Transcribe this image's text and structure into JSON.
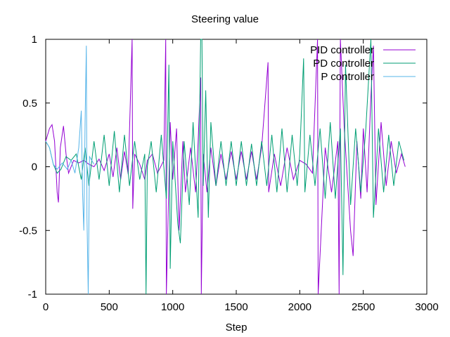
{
  "chart_data": {
    "type": "line",
    "title": "Steering value",
    "xlabel": "Step",
    "ylabel": "",
    "xlim": [
      0,
      3000
    ],
    "ylim": [
      -1,
      1
    ],
    "x_ticks": [
      0,
      500,
      1000,
      1500,
      2000,
      2500,
      3000
    ],
    "y_ticks": [
      -1,
      -0.5,
      0,
      0.5,
      1
    ],
    "x_tick_labels": [
      "0",
      "500",
      "1000",
      "1500",
      "2000",
      "2500",
      "3000"
    ],
    "y_tick_labels": [
      "-1",
      "-0.5",
      "0",
      "0.5",
      "1"
    ],
    "grid": false,
    "legend_position": "top-right",
    "series": [
      {
        "name": "PID controller",
        "color": "#9400d3",
        "points": [
          [
            0,
            0.2
          ],
          [
            30,
            0.3
          ],
          [
            50,
            0.33
          ],
          [
            70,
            0.2
          ],
          [
            90,
            -0.2
          ],
          [
            100,
            -0.28
          ],
          [
            115,
            0.15
          ],
          [
            140,
            0.32
          ],
          [
            160,
            0.1
          ],
          [
            180,
            -0.05
          ],
          [
            220,
            0.05
          ],
          [
            260,
            0.03
          ],
          [
            300,
            0.05
          ],
          [
            340,
            0.02
          ],
          [
            380,
            0.0
          ],
          [
            420,
            0.06
          ],
          [
            460,
            -0.03
          ],
          [
            500,
            0.1
          ],
          [
            530,
            -0.08
          ],
          [
            560,
            0.15
          ],
          [
            590,
            -0.1
          ],
          [
            620,
            0.12
          ],
          [
            650,
            -0.06
          ],
          [
            680,
            1.0
          ],
          [
            685,
            -0.33
          ],
          [
            700,
            0.1
          ],
          [
            740,
            0.02
          ],
          [
            780,
            -0.1
          ],
          [
            800,
            0.05
          ],
          [
            840,
            0.1
          ],
          [
            880,
            -0.05
          ],
          [
            930,
            0.05
          ],
          [
            945,
            1.0
          ],
          [
            950,
            -1.0
          ],
          [
            980,
            0.35
          ],
          [
            1000,
            -0.1
          ],
          [
            1030,
            0.3
          ],
          [
            1050,
            -0.5
          ],
          [
            1080,
            0.2
          ],
          [
            1100,
            -0.2
          ],
          [
            1140,
            0.15
          ],
          [
            1180,
            -0.2
          ],
          [
            1200,
            0.2
          ],
          [
            1220,
            0.7
          ],
          [
            1225,
            -1.0
          ],
          [
            1240,
            0.1
          ],
          [
            1270,
            -0.2
          ],
          [
            1300,
            0.15
          ],
          [
            1340,
            -0.15
          ],
          [
            1380,
            0.1
          ],
          [
            1420,
            -0.1
          ],
          [
            1460,
            0.12
          ],
          [
            1500,
            -0.1
          ],
          [
            1540,
            0.12
          ],
          [
            1580,
            -0.1
          ],
          [
            1620,
            0.12
          ],
          [
            1660,
            -0.1
          ],
          [
            1700,
            0.15
          ],
          [
            1750,
            0.82
          ],
          [
            1755,
            -0.2
          ],
          [
            1800,
            0.1
          ],
          [
            1850,
            -0.15
          ],
          [
            1900,
            0.15
          ],
          [
            1950,
            -0.1
          ],
          [
            2000,
            0.05
          ],
          [
            2050,
            0.02
          ],
          [
            2100,
            -0.05
          ],
          [
            2140,
            1.0
          ],
          [
            2145,
            -1.0
          ],
          [
            2200,
            0.15
          ],
          [
            2250,
            -0.2
          ],
          [
            2300,
            0.2
          ],
          [
            2310,
            -1.0
          ],
          [
            2320,
            1.0
          ],
          [
            2350,
            0.3
          ],
          [
            2400,
            -0.5
          ],
          [
            2420,
            -0.7
          ],
          [
            2450,
            0.2
          ],
          [
            2480,
            -0.25
          ],
          [
            2500,
            0.3
          ],
          [
            2530,
            -0.2
          ],
          [
            2560,
            0.55
          ],
          [
            2580,
            0.95
          ],
          [
            2600,
            -0.3
          ],
          [
            2640,
            0.35
          ],
          [
            2680,
            -0.15
          ],
          [
            2720,
            0.2
          ],
          [
            2760,
            -0.05
          ],
          [
            2800,
            0.1
          ],
          [
            2830,
            0.0
          ]
        ]
      },
      {
        "name": "PD controller",
        "color": "#009e73",
        "points": [
          [
            0,
            0.2
          ],
          [
            30,
            0.15
          ],
          [
            60,
            0.02
          ],
          [
            90,
            -0.05
          ],
          [
            120,
            -0.02
          ],
          [
            160,
            0.08
          ],
          [
            200,
            0.05
          ],
          [
            240,
            0.1
          ],
          [
            280,
            -0.1
          ],
          [
            310,
            0.15
          ],
          [
            340,
            -0.15
          ],
          [
            380,
            0.2
          ],
          [
            420,
            -0.1
          ],
          [
            460,
            0.25
          ],
          [
            500,
            -0.15
          ],
          [
            540,
            0.28
          ],
          [
            580,
            -0.2
          ],
          [
            620,
            0.25
          ],
          [
            660,
            -0.15
          ],
          [
            700,
            0.2
          ],
          [
            740,
            -0.1
          ],
          [
            780,
            0.1
          ],
          [
            790,
            -1.0
          ],
          [
            800,
            0.0
          ],
          [
            830,
            0.2
          ],
          [
            870,
            -0.2
          ],
          [
            910,
            0.25
          ],
          [
            950,
            -0.25
          ],
          [
            970,
            0.8
          ],
          [
            980,
            -0.8
          ],
          [
            1000,
            0.2
          ],
          [
            1040,
            -0.45
          ],
          [
            1060,
            -0.6
          ],
          [
            1090,
            0.2
          ],
          [
            1130,
            -0.3
          ],
          [
            1160,
            0.35
          ],
          [
            1200,
            -0.4
          ],
          [
            1220,
            1.0
          ],
          [
            1230,
            1.0
          ],
          [
            1240,
            -0.15
          ],
          [
            1260,
            0.6
          ],
          [
            1280,
            -0.4
          ],
          [
            1300,
            0.35
          ],
          [
            1340,
            -0.15
          ],
          [
            1380,
            0.2
          ],
          [
            1420,
            -0.15
          ],
          [
            1460,
            0.2
          ],
          [
            1500,
            -0.15
          ],
          [
            1540,
            0.2
          ],
          [
            1580,
            -0.15
          ],
          [
            1620,
            0.18
          ],
          [
            1660,
            -0.15
          ],
          [
            1700,
            0.2
          ],
          [
            1740,
            -0.15
          ],
          [
            1780,
            0.25
          ],
          [
            1820,
            -0.2
          ],
          [
            1860,
            0.3
          ],
          [
            1900,
            -0.2
          ],
          [
            1940,
            0.25
          ],
          [
            1980,
            -0.15
          ],
          [
            2000,
            0.1
          ],
          [
            2030,
            0.85
          ],
          [
            2040,
            -0.2
          ],
          [
            2080,
            0.25
          ],
          [
            2120,
            -0.15
          ],
          [
            2160,
            0.3
          ],
          [
            2200,
            -0.25
          ],
          [
            2240,
            0.35
          ],
          [
            2280,
            -0.25
          ],
          [
            2320,
            0.3
          ],
          [
            2340,
            -0.85
          ],
          [
            2360,
            0.8
          ],
          [
            2400,
            -0.3
          ],
          [
            2440,
            0.3
          ],
          [
            2480,
            -0.2
          ],
          [
            2520,
            0.3
          ],
          [
            2560,
            1.0
          ],
          [
            2580,
            -0.4
          ],
          [
            2620,
            0.3
          ],
          [
            2660,
            -0.2
          ],
          [
            2700,
            0.25
          ],
          [
            2740,
            -0.15
          ],
          [
            2780,
            0.2
          ],
          [
            2820,
            0.05
          ]
        ]
      },
      {
        "name": "P controller",
        "color": "#56b4e9",
        "points": [
          [
            0,
            0.2
          ],
          [
            30,
            0.15
          ],
          [
            60,
            0.02
          ],
          [
            90,
            -0.02
          ],
          [
            130,
            0.03
          ],
          [
            170,
            -0.02
          ],
          [
            200,
            0.05
          ],
          [
            230,
            -0.05
          ],
          [
            260,
            0.15
          ],
          [
            280,
            0.44
          ],
          [
            290,
            -0.2
          ],
          [
            300,
            -0.5
          ],
          [
            310,
            0.35
          ],
          [
            320,
            0.95
          ],
          [
            325,
            -0.4
          ],
          [
            335,
            -1.0
          ],
          [
            345,
            0.08
          ],
          [
            380,
            0.02
          ]
        ]
      }
    ]
  }
}
